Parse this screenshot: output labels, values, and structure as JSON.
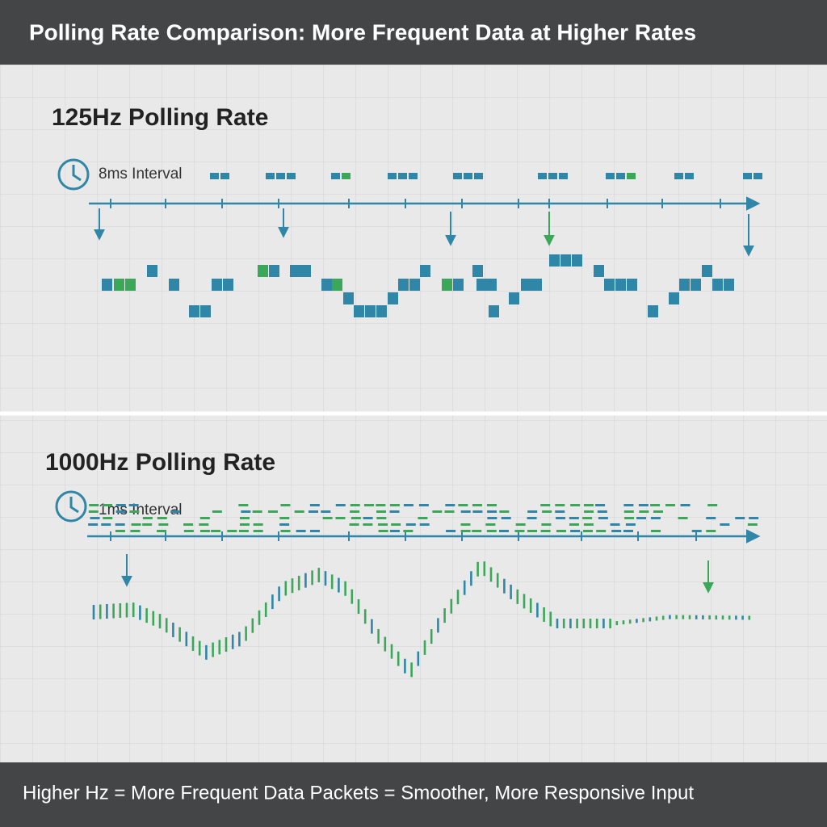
{
  "header": {
    "title": "Polling Rate Comparison: More Frequent Data at Higher Rates"
  },
  "panels": [
    {
      "title": "125Hz Polling Rate",
      "interval": "8ms Interval"
    },
    {
      "title": "1000Hz Polling Rate",
      "interval": "1ms Interval"
    }
  ],
  "footer": {
    "text": "Higher Hz = More Frequent Data Packets = Smoother, More Responsive Input"
  }
}
